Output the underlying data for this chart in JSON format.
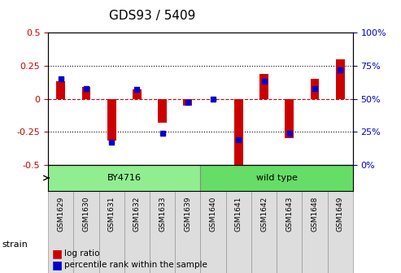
{
  "title": "GDS93 / 5409",
  "samples": [
    "GSM1629",
    "GSM1630",
    "GSM1631",
    "GSM1632",
    "GSM1633",
    "GSM1639",
    "GSM1640",
    "GSM1641",
    "GSM1642",
    "GSM1643",
    "GSM1648",
    "GSM1649"
  ],
  "log_ratio": [
    0.13,
    0.09,
    -0.32,
    0.07,
    -0.18,
    -0.05,
    0.0,
    -0.52,
    0.19,
    -0.3,
    0.15,
    0.3
  ],
  "percentile_rank": [
    65,
    58,
    17,
    57,
    24,
    47,
    50,
    19,
    63,
    24,
    58,
    72
  ],
  "groups": [
    {
      "label": "BY4716",
      "start": 0,
      "end": 6,
      "color": "#90EE90"
    },
    {
      "label": "wild type",
      "start": 6,
      "end": 12,
      "color": "#66DD66"
    }
  ],
  "ylim_left": [
    -0.5,
    0.5
  ],
  "ylim_right": [
    0,
    100
  ],
  "yticks_left": [
    -0.5,
    -0.25,
    0,
    0.25,
    0.5
  ],
  "yticks_right": [
    0,
    25,
    50,
    75,
    100
  ],
  "ytick_labels_left": [
    "-0.5",
    "-0.25",
    "0",
    "0.25",
    "0.5"
  ],
  "ytick_labels_right": [
    "0%",
    "25%",
    "50%",
    "75%",
    "100%"
  ],
  "bar_color": "#CC0000",
  "dot_color": "#0000CC",
  "zero_line_color": "#CC0000",
  "grid_line_color": "#000000",
  "bg_color": "#FFFFFF",
  "plot_bg_color": "#FFFFFF",
  "tick_label_color_left": "#CC0000",
  "tick_label_color_right": "#0000CC",
  "strain_label": "strain",
  "legend_log": "log ratio",
  "legend_pct": "percentile rank within the sample",
  "title_fontsize": 11,
  "axis_fontsize": 8,
  "label_fontsize": 8
}
